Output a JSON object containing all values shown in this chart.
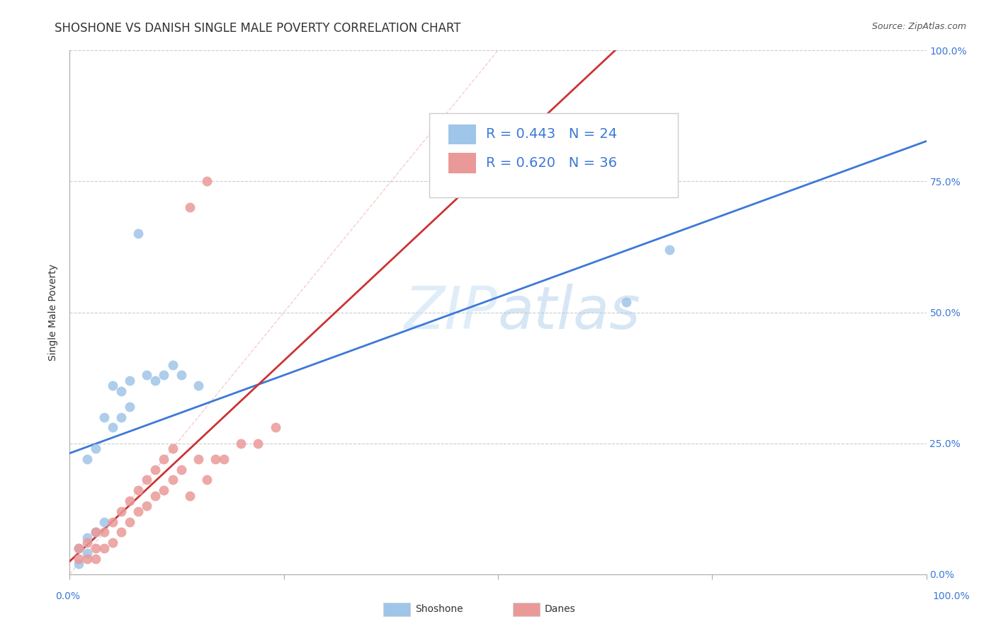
{
  "title": "SHOSHONE VS DANISH SINGLE MALE POVERTY CORRELATION CHART",
  "source": "Source: ZipAtlas.com",
  "ylabel": "Single Male Poverty",
  "watermark_text": "ZIPatlas",
  "shoshone_R": 0.443,
  "shoshone_N": 24,
  "danes_R": 0.62,
  "danes_N": 36,
  "shoshone_color": "#9fc5e8",
  "danes_color": "#ea9999",
  "shoshone_line_color": "#3c78d8",
  "danes_line_color": "#cc3333",
  "diagonal_color": "#f4b8b8",
  "legend_text_color": "#3c78d8",
  "xlim": [
    0.0,
    1.0
  ],
  "ylim": [
    0.0,
    1.0
  ],
  "title_fontsize": 12,
  "label_fontsize": 10,
  "tick_fontsize": 10,
  "legend_fontsize": 14,
  "shoshone_x": [
    0.01,
    0.01,
    0.02,
    0.02,
    0.02,
    0.03,
    0.03,
    0.04,
    0.04,
    0.05,
    0.05,
    0.06,
    0.06,
    0.07,
    0.07,
    0.08,
    0.09,
    0.1,
    0.11,
    0.12,
    0.13,
    0.15,
    0.65,
    0.7
  ],
  "shoshone_y": [
    0.02,
    0.05,
    0.04,
    0.07,
    0.22,
    0.08,
    0.24,
    0.1,
    0.3,
    0.28,
    0.36,
    0.3,
    0.35,
    0.32,
    0.37,
    0.65,
    0.38,
    0.37,
    0.38,
    0.4,
    0.38,
    0.36,
    0.52,
    0.62
  ],
  "danes_x": [
    0.01,
    0.01,
    0.02,
    0.02,
    0.03,
    0.03,
    0.03,
    0.04,
    0.04,
    0.05,
    0.05,
    0.06,
    0.06,
    0.07,
    0.07,
    0.08,
    0.08,
    0.09,
    0.09,
    0.1,
    0.1,
    0.11,
    0.11,
    0.12,
    0.12,
    0.13,
    0.14,
    0.15,
    0.16,
    0.17,
    0.18,
    0.2,
    0.22,
    0.24,
    0.14,
    0.16
  ],
  "danes_y": [
    0.03,
    0.05,
    0.03,
    0.06,
    0.03,
    0.05,
    0.08,
    0.05,
    0.08,
    0.06,
    0.1,
    0.08,
    0.12,
    0.1,
    0.14,
    0.12,
    0.16,
    0.13,
    0.18,
    0.15,
    0.2,
    0.16,
    0.22,
    0.18,
    0.24,
    0.2,
    0.15,
    0.22,
    0.18,
    0.22,
    0.22,
    0.25,
    0.25,
    0.28,
    0.7,
    0.75
  ]
}
